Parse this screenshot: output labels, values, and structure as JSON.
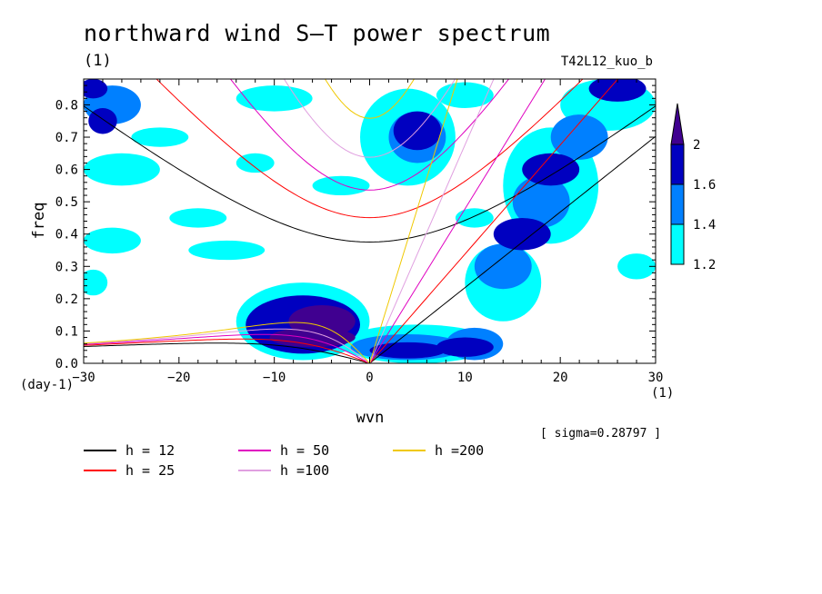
{
  "chart_data": {
    "type": "heatmap",
    "title": "northward wind S—T power spectrum",
    "subtitle": "(1)",
    "run_label": "T42L12_kuo_b",
    "xlabel": "wvn",
    "ylabel": "freq",
    "x_unit": "(1)",
    "y_unit": "(day-1)",
    "sigma_text": "[ sigma=0.28797 ]",
    "xlim": [
      -30,
      30
    ],
    "ylim": [
      0,
      0.88
    ],
    "x_ticks": [
      -30,
      -20,
      -10,
      0,
      10,
      20,
      30
    ],
    "x_tick_labels": [
      "−30",
      "−20",
      "−10",
      "0",
      "10",
      "20",
      "30"
    ],
    "y_ticks": [
      0.0,
      0.1,
      0.2,
      0.3,
      0.4,
      0.5,
      0.6,
      0.7,
      0.8
    ],
    "y_tick_labels": [
      "0.0",
      "0.1",
      "0.2",
      "0.3",
      "0.4",
      "0.5",
      "0.6",
      "0.7",
      "0.8"
    ],
    "grid": false,
    "colorbar": {
      "levels": [
        1.2,
        1.4,
        1.6,
        2
      ],
      "labels": [
        "1.2",
        "1.4",
        "1.6",
        "2"
      ],
      "colors": [
        "#00ffff",
        "#0080ff",
        "#0000c0",
        "#400090"
      ]
    },
    "dispersion_curves": [
      {
        "label": "h = 12",
        "h": 12,
        "color": "#000000"
      },
      {
        "label": "h = 25",
        "h": 25,
        "color": "#ff0000"
      },
      {
        "label": "h = 50",
        "h": 50,
        "color": "#e000c0"
      },
      {
        "label": "h =100",
        "h": 100,
        "color": "#e0a0e0"
      },
      {
        "label": "h =200",
        "h": 200,
        "color": "#f0c800"
      }
    ],
    "regions": [
      {
        "level": 2,
        "x": -5,
        "y": 0.13,
        "dx": 3.5,
        "dy": 0.05
      },
      {
        "level": 2,
        "x": -6,
        "y": 0.08,
        "dx": 4.5,
        "dy": 0.03
      },
      {
        "level": 1.6,
        "x": -7,
        "y": 0.12,
        "dx": 6,
        "dy": 0.09
      },
      {
        "level": 1.6,
        "x": 4,
        "y": 0.04,
        "dx": 4,
        "dy": 0.025
      },
      {
        "level": 1.6,
        "x": 10,
        "y": 0.05,
        "dx": 3,
        "dy": 0.03
      },
      {
        "level": 1.6,
        "x": 16,
        "y": 0.4,
        "dx": 3,
        "dy": 0.05
      },
      {
        "level": 1.6,
        "x": 19,
        "y": 0.6,
        "dx": 3,
        "dy": 0.05
      },
      {
        "level": 1.6,
        "x": 26,
        "y": 0.85,
        "dx": 3,
        "dy": 0.04
      },
      {
        "level": 1.6,
        "x": 5,
        "y": 0.72,
        "dx": 2.5,
        "dy": 0.06
      },
      {
        "level": 1.6,
        "x": -28,
        "y": 0.75,
        "dx": 1.5,
        "dy": 0.04
      },
      {
        "level": 1.6,
        "x": -29,
        "y": 0.85,
        "dx": 1.5,
        "dy": 0.03
      },
      {
        "level": 1.4,
        "x": 4,
        "y": 0.05,
        "dx": 6,
        "dy": 0.04
      },
      {
        "level": 1.4,
        "x": 11,
        "y": 0.06,
        "dx": 3,
        "dy": 0.05
      },
      {
        "level": 1.4,
        "x": 14,
        "y": 0.3,
        "dx": 3,
        "dy": 0.07
      },
      {
        "level": 1.4,
        "x": 18,
        "y": 0.5,
        "dx": 3,
        "dy": 0.08
      },
      {
        "level": 1.4,
        "x": 22,
        "y": 0.7,
        "dx": 3,
        "dy": 0.07
      },
      {
        "level": 1.4,
        "x": 5,
        "y": 0.7,
        "dx": 3,
        "dy": 0.08
      },
      {
        "level": 1.4,
        "x": -27,
        "y": 0.8,
        "dx": 3,
        "dy": 0.06
      },
      {
        "level": 1.2,
        "x": -7,
        "y": 0.13,
        "dx": 7,
        "dy": 0.12
      },
      {
        "level": 1.2,
        "x": 5,
        "y": 0.06,
        "dx": 8,
        "dy": 0.06
      },
      {
        "level": 1.2,
        "x": 14,
        "y": 0.25,
        "dx": 4,
        "dy": 0.12
      },
      {
        "level": 1.2,
        "x": 19,
        "y": 0.55,
        "dx": 5,
        "dy": 0.18
      },
      {
        "level": 1.2,
        "x": 25,
        "y": 0.8,
        "dx": 5,
        "dy": 0.08
      },
      {
        "level": 1.2,
        "x": 4,
        "y": 0.7,
        "dx": 5,
        "dy": 0.15
      },
      {
        "level": 1.2,
        "x": -26,
        "y": 0.6,
        "dx": 4,
        "dy": 0.05
      },
      {
        "level": 1.2,
        "x": -27,
        "y": 0.38,
        "dx": 3,
        "dy": 0.04
      },
      {
        "level": 1.2,
        "x": -18,
        "y": 0.45,
        "dx": 3,
        "dy": 0.03
      },
      {
        "level": 1.2,
        "x": -15,
        "y": 0.35,
        "dx": 4,
        "dy": 0.03
      },
      {
        "level": 1.2,
        "x": -22,
        "y": 0.7,
        "dx": 3,
        "dy": 0.03
      },
      {
        "level": 1.2,
        "x": -10,
        "y": 0.82,
        "dx": 4,
        "dy": 0.04
      },
      {
        "level": 1.2,
        "x": -3,
        "y": 0.55,
        "dx": 3,
        "dy": 0.03
      },
      {
        "level": 1.2,
        "x": 10,
        "y": 0.83,
        "dx": 3,
        "dy": 0.04
      },
      {
        "level": 1.2,
        "x": -29,
        "y": 0.25,
        "dx": 1.5,
        "dy": 0.04
      },
      {
        "level": 1.2,
        "x": -12,
        "y": 0.62,
        "dx": 2,
        "dy": 0.03
      },
      {
        "level": 1.2,
        "x": 28,
        "y": 0.3,
        "dx": 2,
        "dy": 0.04
      },
      {
        "level": 1.2,
        "x": 11,
        "y": 0.45,
        "dx": 2,
        "dy": 0.03
      }
    ]
  }
}
